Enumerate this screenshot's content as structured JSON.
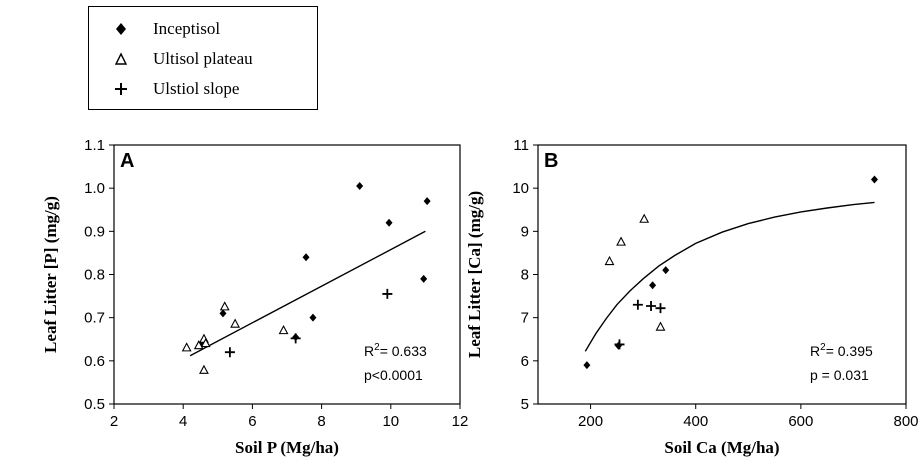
{
  "legend": {
    "items": [
      {
        "label": "Inceptisol",
        "marker": "diamond"
      },
      {
        "label": "Ultisol plateau",
        "marker": "triangle-open"
      },
      {
        "label": "Ulstiol slope",
        "marker": "plus"
      }
    ]
  },
  "chart_data": [
    {
      "type": "scatter",
      "panel_label": "A",
      "xlabel": "Soil P (Mg/ha)",
      "ylabel": "Leaf Litter [P] (mg/g)",
      "xlim": [
        2,
        12
      ],
      "ylim": [
        0.5,
        1.1
      ],
      "xticks": [
        "2",
        "4",
        "6",
        "8",
        "10",
        "12"
      ],
      "yticks": [
        "0.5",
        "0.6",
        "0.7",
        "0.8",
        "0.9",
        "1.0",
        "1.1"
      ],
      "stats": {
        "r2_prefix": "R",
        "r2_sup": "2",
        "r2_value": "= 0.633",
        "p": "p<0.0001"
      },
      "series": [
        {
          "name": "Inceptisol",
          "marker": "diamond",
          "points": [
            [
              9.1,
              1.005
            ],
            [
              11.05,
              0.97
            ],
            [
              9.95,
              0.92
            ],
            [
              7.75,
              0.7
            ],
            [
              5.15,
              0.71
            ],
            [
              7.25,
              0.655
            ],
            [
              4.55,
              0.64
            ],
            [
              7.55,
              0.84
            ],
            [
              10.95,
              0.79
            ]
          ]
        },
        {
          "name": "Ultisol plateau",
          "marker": "triangle-open",
          "points": [
            [
              4.1,
              0.63
            ],
            [
              4.45,
              0.635
            ],
            [
              4.6,
              0.65
            ],
            [
              4.65,
              0.64
            ],
            [
              4.6,
              0.578
            ],
            [
              5.2,
              0.725
            ],
            [
              5.5,
              0.685
            ],
            [
              6.9,
              0.67
            ]
          ]
        },
        {
          "name": "Ulstiol slope",
          "marker": "plus",
          "points": [
            [
              5.35,
              0.62
            ],
            [
              7.25,
              0.652
            ],
            [
              9.9,
              0.755
            ]
          ]
        }
      ],
      "fit": {
        "type": "linear",
        "x": [
          4.2,
          11.0
        ],
        "y": [
          0.612,
          0.9
        ]
      }
    },
    {
      "type": "scatter",
      "panel_label": "B",
      "xlabel": "Soil Ca (Mg/ha)",
      "ylabel": "Leaf Litter [Ca] (mg/g)",
      "xlim": [
        100,
        800
      ],
      "ylim": [
        5,
        11
      ],
      "xticks": [
        "200",
        "400",
        "600",
        "800"
      ],
      "xtick_values": [
        200,
        400,
        600,
        800
      ],
      "yticks": [
        "5",
        "6",
        "7",
        "8",
        "9",
        "10",
        "11"
      ],
      "stats": {
        "r2_prefix": "R",
        "r2_sup": "2",
        "r2_value": "= 0.395",
        "p": "p = 0.031"
      },
      "series": [
        {
          "name": "Inceptisol",
          "marker": "diamond",
          "points": [
            [
              740,
              10.2
            ],
            [
              343,
              8.1
            ],
            [
              318,
              7.75
            ],
            [
              193,
              5.9
            ],
            [
              253,
              6.35
            ]
          ]
        },
        {
          "name": "Ultisol plateau",
          "marker": "triangle-open",
          "points": [
            [
              236,
              8.3
            ],
            [
              258,
              8.75
            ],
            [
              302,
              9.28
            ],
            [
              333,
              6.78
            ]
          ]
        },
        {
          "name": "Ulstiol slope",
          "marker": "plus",
          "points": [
            [
              290,
              7.3
            ],
            [
              315,
              7.27
            ],
            [
              333,
              7.22
            ],
            [
              255,
              6.38
            ]
          ]
        }
      ],
      "fit": {
        "type": "exponential-rise",
        "x": [
          190,
          210,
          230,
          250,
          275,
          300,
          330,
          360,
          400,
          450,
          500,
          550,
          600,
          650,
          700,
          740
        ],
        "y": [
          6.22,
          6.63,
          6.98,
          7.3,
          7.62,
          7.9,
          8.2,
          8.44,
          8.72,
          8.98,
          9.18,
          9.33,
          9.45,
          9.54,
          9.62,
          9.67
        ]
      }
    }
  ]
}
